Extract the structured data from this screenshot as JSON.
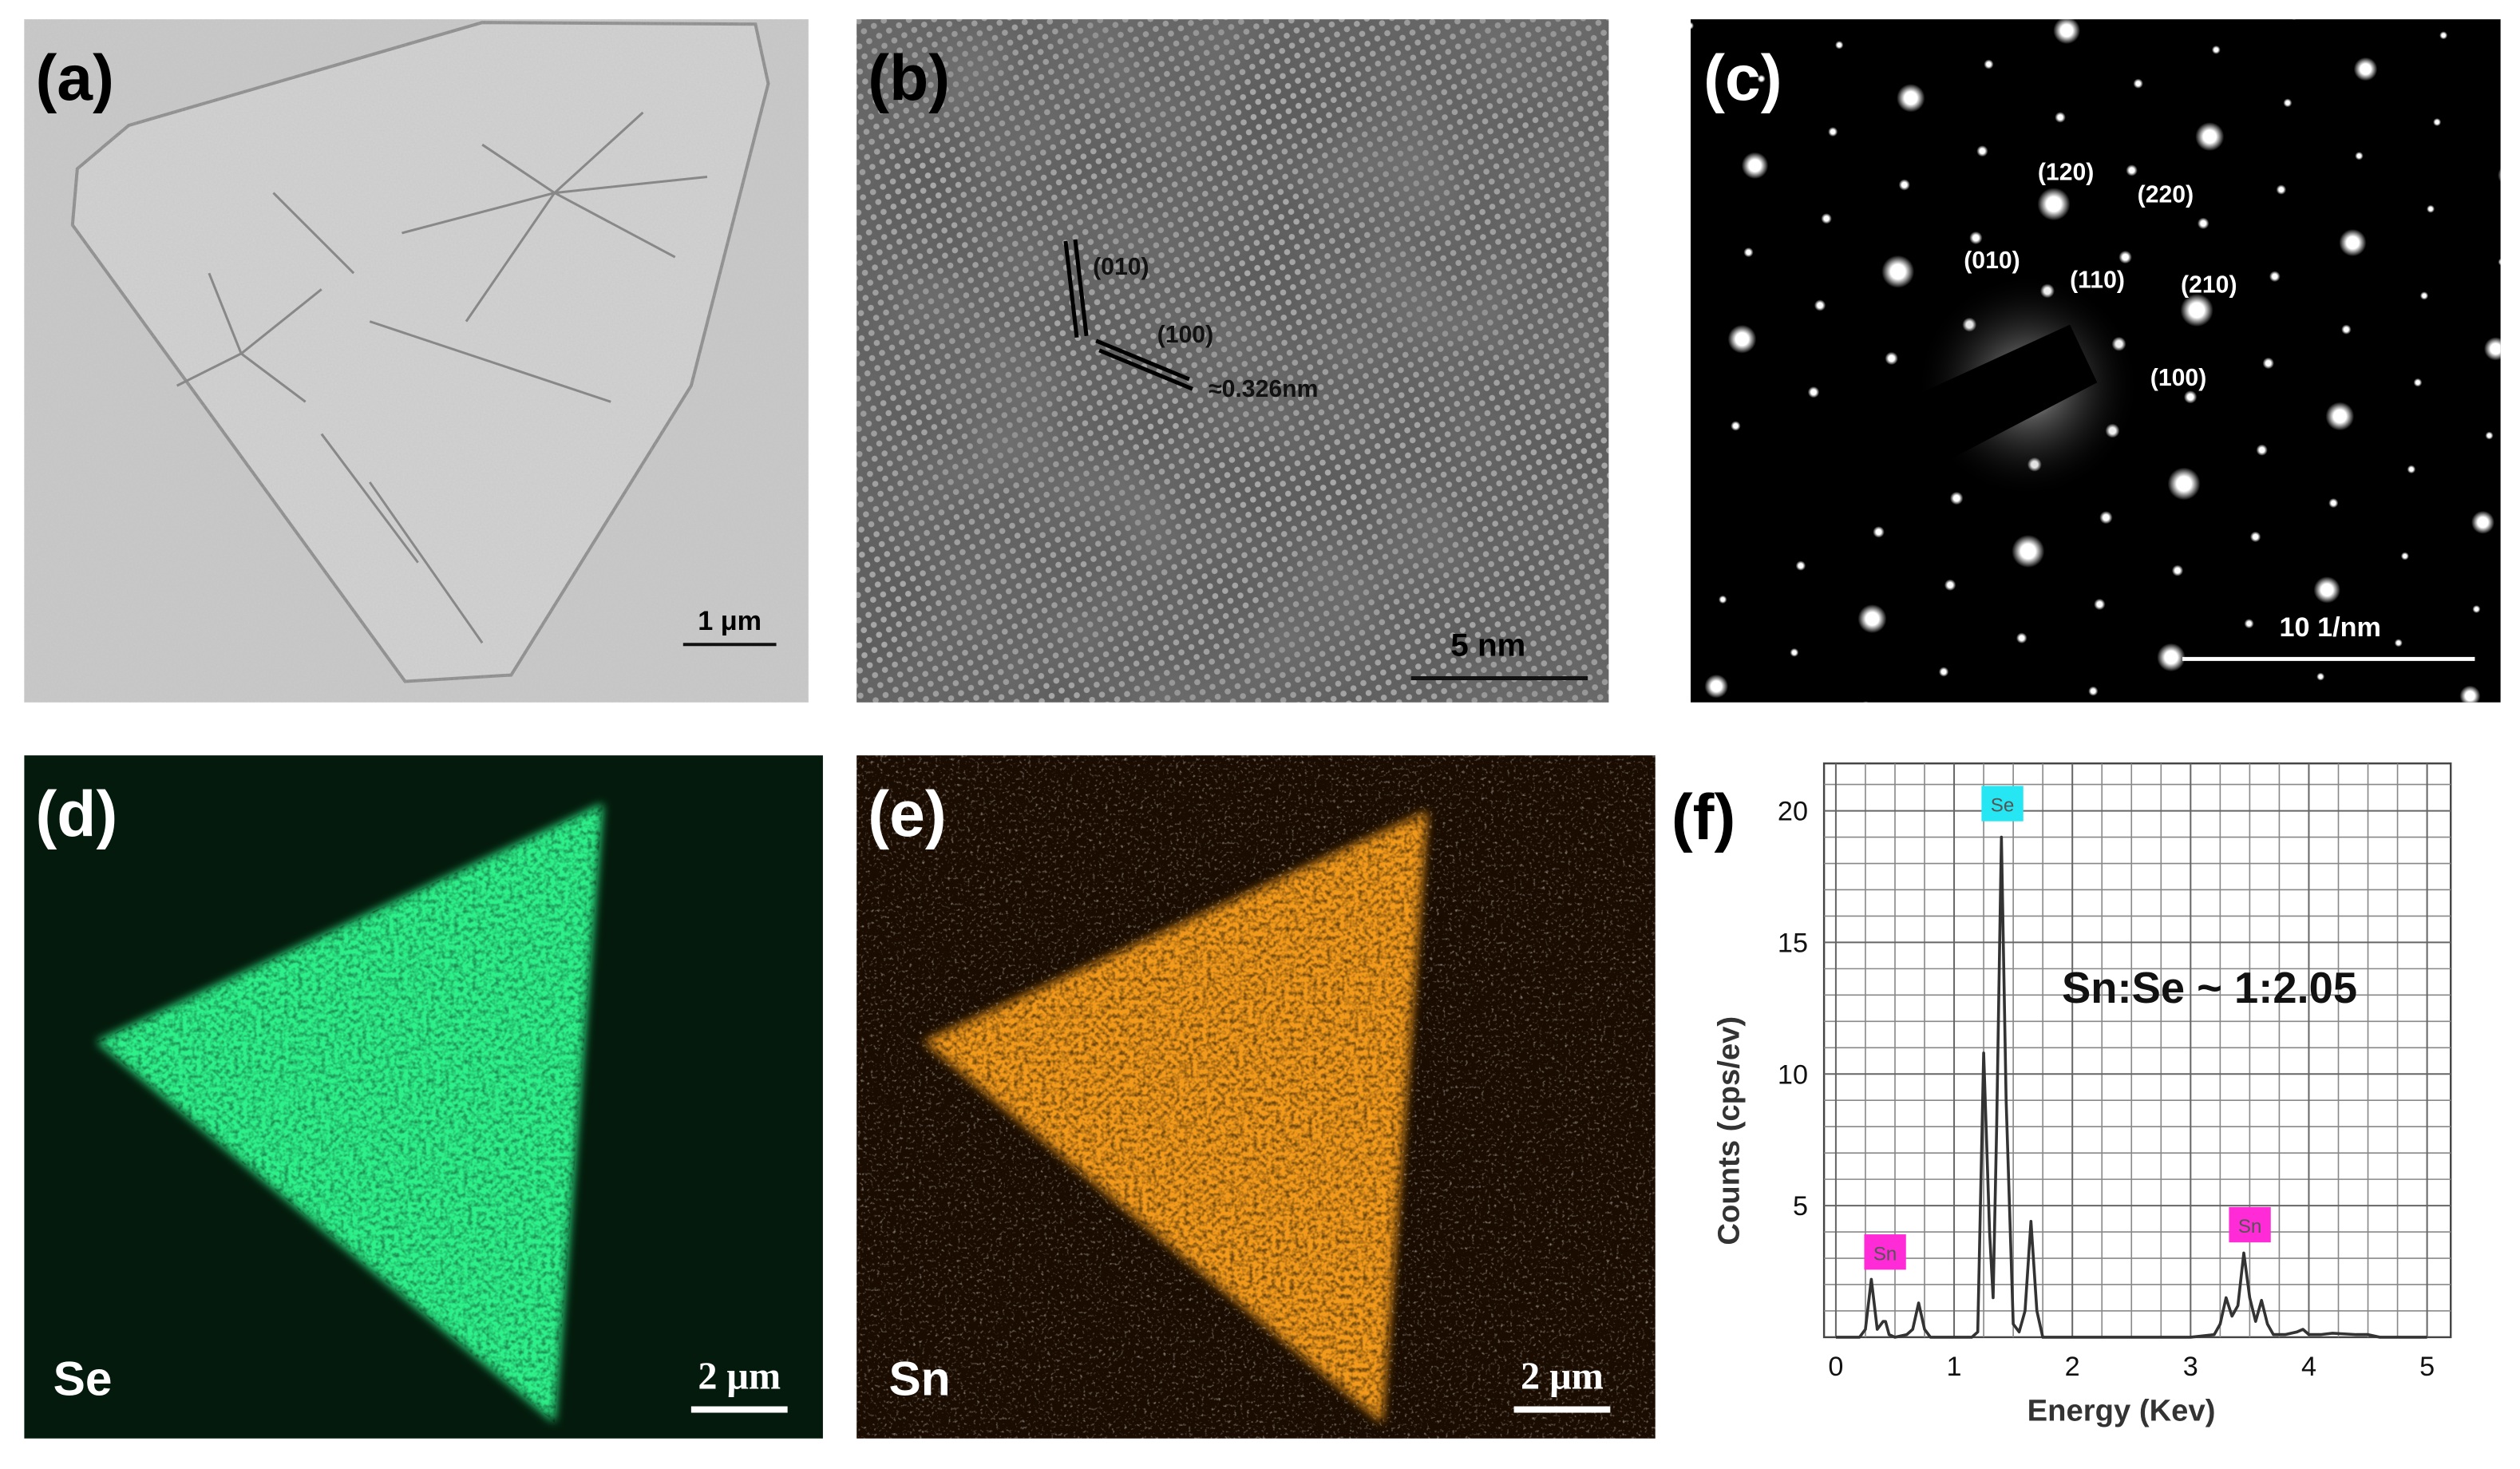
{
  "panels": [
    {
      "label": "(a)",
      "scale_bar": "1 μm"
    },
    {
      "label": "(b)",
      "scale_bar": "5 nm",
      "annotations": [
        "(010)",
        "(100)",
        "≈0.326nm"
      ]
    },
    {
      "label": "(c)",
      "scale_bar": "10 1/nm",
      "annotations": [
        "(120)",
        "(220)",
        "(010)",
        "(110)",
        "(210)",
        "(100)"
      ]
    },
    {
      "label": "(d)",
      "element": "Se",
      "scale_bar": "2 μm"
    },
    {
      "label": "(e)",
      "element": "Sn",
      "scale_bar": "2 μm"
    },
    {
      "label": "(f)"
    }
  ],
  "chart_data": {
    "type": "line",
    "color": "#333333",
    "xlabel": "Energy (Kev)",
    "ylabel": "Counts (cps/ev)",
    "x": [
      0,
      0.1,
      0.2,
      0.25,
      0.3,
      0.35,
      0.4,
      0.42,
      0.45,
      0.5,
      0.6,
      0.65,
      0.7,
      0.75,
      0.8,
      1.0,
      1.15,
      1.2,
      1.25,
      1.3,
      1.33,
      1.36,
      1.4,
      1.44,
      1.5,
      1.55,
      1.6,
      1.65,
      1.7,
      1.75,
      1.8,
      2.0,
      2.5,
      3.0,
      3.2,
      3.25,
      3.3,
      3.35,
      3.4,
      3.45,
      3.5,
      3.55,
      3.6,
      3.65,
      3.7,
      3.8,
      3.9,
      3.95,
      4.0,
      4.1,
      4.2,
      4.4,
      4.5,
      4.6,
      5.0
    ],
    "values": [
      0,
      0,
      0,
      0.3,
      2.2,
      0.3,
      0.6,
      0.6,
      0.1,
      0,
      0.1,
      0.3,
      1.3,
      0.3,
      0,
      0,
      0,
      0.2,
      10.8,
      4,
      1.5,
      8,
      19,
      9,
      0.5,
      0.2,
      1,
      4.4,
      1,
      0,
      0,
      0,
      0,
      0,
      0.1,
      0.5,
      1.5,
      0.8,
      1.2,
      3.2,
      1.5,
      0.6,
      1.4,
      0.5,
      0.1,
      0.1,
      0.2,
      0.3,
      0.1,
      0.1,
      0.15,
      0.1,
      0.1,
      0,
      0
    ],
    "xlim": [
      -0.1,
      5.2
    ],
    "ylim": [
      0,
      21.8
    ],
    "xticks": [
      0,
      1,
      2,
      3,
      4,
      5
    ],
    "yticks": [
      5,
      10,
      15,
      20
    ],
    "minor_xticks": [
      0.25,
      0.5,
      0.75,
      1.25,
      1.5,
      1.75,
      2.25,
      2.5,
      2.75,
      3.25,
      3.5,
      3.75,
      4.25,
      4.5,
      4.75
    ],
    "minor_yticks": [
      1,
      2,
      3,
      4,
      6,
      7,
      8,
      9,
      11,
      12,
      13,
      14,
      16,
      17,
      18,
      19,
      21
    ],
    "grid": true,
    "annotations": [
      "Se",
      "Sn",
      "Sn",
      "Sn:Se ~ 1:2.05"
    ]
  }
}
